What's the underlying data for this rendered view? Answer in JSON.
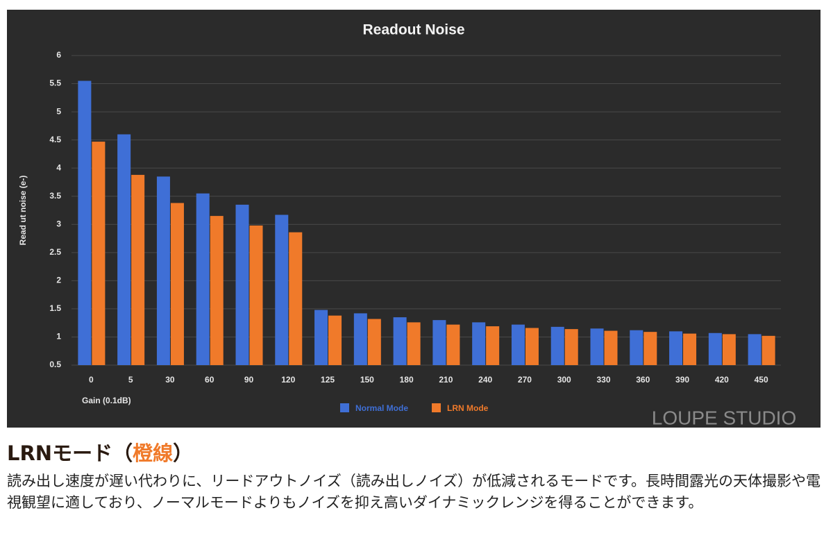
{
  "chart_data": {
    "type": "bar",
    "title": "Readout Noise",
    "x_label": "Gain (0.1dB)",
    "y_label": "Read ut noise (e-)",
    "categories": [
      "0",
      "5",
      "30",
      "60",
      "90",
      "120",
      "125",
      "150",
      "180",
      "210",
      "240",
      "270",
      "300",
      "330",
      "360",
      "390",
      "420",
      "450"
    ],
    "series": [
      {
        "name": "Normal Mode",
        "color": "#3f6fd6",
        "values": [
          5.55,
          4.6,
          3.85,
          3.55,
          3.35,
          3.17,
          1.48,
          1.42,
          1.35,
          1.3,
          1.26,
          1.22,
          1.18,
          1.15,
          1.12,
          1.1,
          1.07,
          1.05
        ]
      },
      {
        "name": "LRN Mode",
        "color": "#f07a2a",
        "values": [
          4.47,
          3.88,
          3.38,
          3.15,
          2.98,
          2.86,
          1.38,
          1.32,
          1.26,
          1.22,
          1.19,
          1.16,
          1.14,
          1.11,
          1.09,
          1.06,
          1.05,
          1.02
        ]
      }
    ],
    "ylim": [
      0.5,
      6
    ],
    "yticks": [
      0.5,
      1,
      1.5,
      2,
      2.5,
      3,
      3.5,
      4,
      4.5,
      5,
      5.5,
      6
    ],
    "grid": true,
    "legend": "bottom"
  },
  "watermark": "LOUPE STUDIO",
  "heading": {
    "before": "LRNモード（",
    "accent": "橙線",
    "after": "）"
  },
  "body": "読み出し速度が遅い代わりに、リードアウトノイズ（読み出しノイズ）が低減されるモードです。長時間露光の天体撮影や電視観望に適しており、ノーマルモードよりもノイズを抑え高いダイナミックレンジを得ることができます。"
}
